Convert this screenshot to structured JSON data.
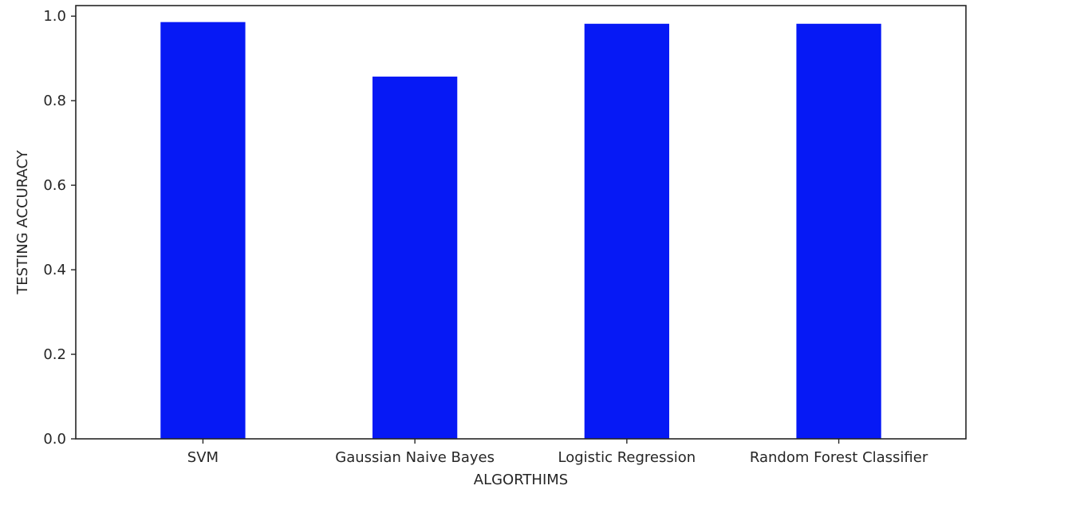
{
  "chart_data": {
    "type": "bar",
    "title": "",
    "xlabel": "ALGORTHIMS",
    "ylabel": "TESTING ACCURACY",
    "categories": [
      "SVM",
      "Gaussian Naive Bayes",
      "Logistic Regression",
      "Random Forest Classifier"
    ],
    "values": [
      0.986,
      0.857,
      0.982,
      0.982
    ],
    "ylim": [
      0,
      1.025
    ],
    "yticks": [
      0.0,
      0.2,
      0.4,
      0.6,
      0.8,
      1.0
    ],
    "ytick_labels": [
      "0.0",
      "0.2",
      "0.4",
      "0.6",
      "0.8",
      "1.0"
    ],
    "grid": false,
    "legend": "none",
    "bar_color": "#0619f5"
  }
}
